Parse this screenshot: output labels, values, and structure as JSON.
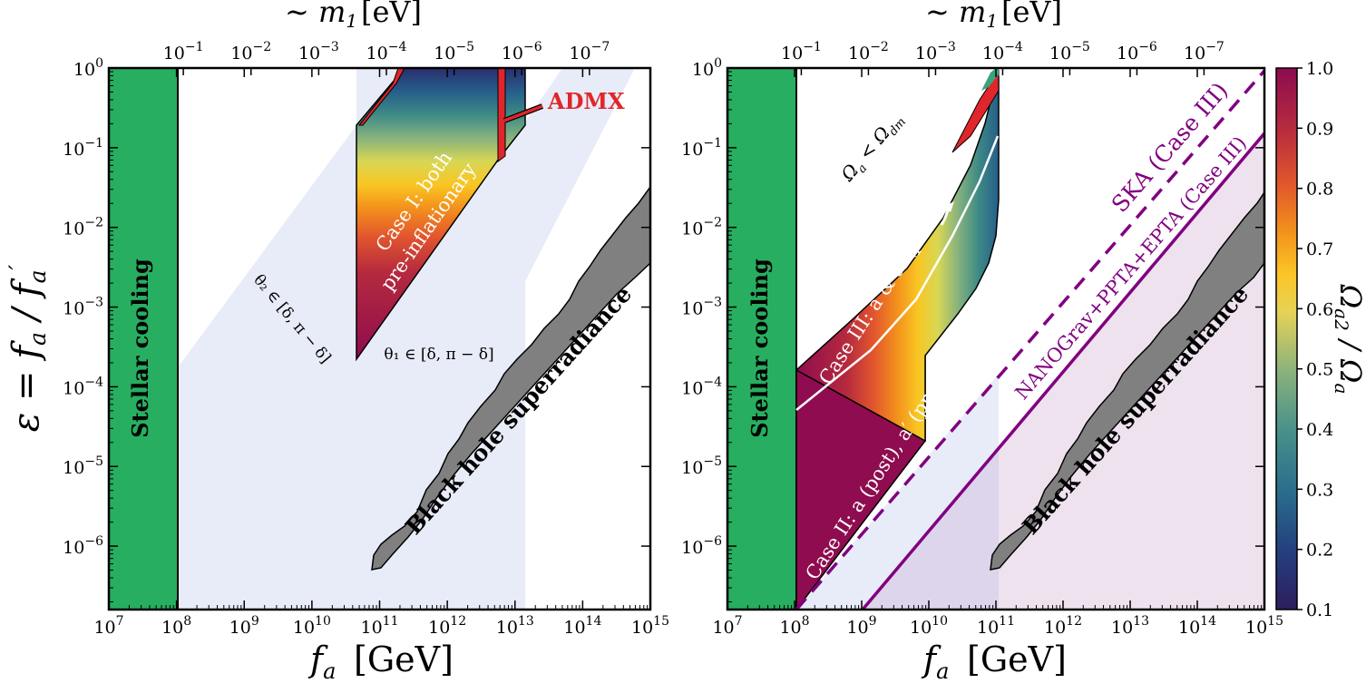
{
  "chart_data": [
    {
      "type": "region",
      "xlabel": "f_a [GeV]",
      "ylabel": "ε = f_a / f_a′",
      "top_xlabel": "~ m_1 [eV]",
      "x_scale": "log",
      "y_scale": "log",
      "xlim": [
        10000000.0,
        1000000000000000.0
      ],
      "ylim": [
        1.6e-07,
        1
      ],
      "x_ticks": [
        {
          "value": 10000000.0,
          "label": "10^7"
        },
        {
          "value": 100000000.0,
          "label": "10^8"
        },
        {
          "value": 1000000000.0,
          "label": "10^9"
        },
        {
          "value": 10000000000.0,
          "label": "10^10"
        },
        {
          "value": 100000000000.0,
          "label": "10^11"
        },
        {
          "value": 1000000000000.0,
          "label": "10^12"
        },
        {
          "value": 10000000000000.0,
          "label": "10^13"
        },
        {
          "value": 100000000000000.0,
          "label": "10^14"
        },
        {
          "value": 1000000000000000.0,
          "label": "10^15"
        }
      ],
      "y_ticks": [
        {
          "value": 1,
          "label": "10^0"
        },
        {
          "value": 0.1,
          "label": "10^-1"
        },
        {
          "value": 0.01,
          "label": "10^-2"
        },
        {
          "value": 0.001,
          "label": "10^-3"
        },
        {
          "value": 0.0001,
          "label": "10^-4"
        },
        {
          "value": 1e-05,
          "label": "10^-5"
        },
        {
          "value": 1e-06,
          "label": "10^-6"
        }
      ],
      "top_ticks": [
        {
          "fa": 126000000.0,
          "label": "10^-1"
        },
        {
          "fa": 1260000000.0,
          "label": "10^-2"
        },
        {
          "fa": 12600000000.0,
          "label": "10^-3"
        },
        {
          "fa": 126000000000.0,
          "label": "10^-4"
        },
        {
          "fa": 1260000000000.0,
          "label": "10^-5"
        },
        {
          "fa": 12600000000000.0,
          "label": "10^-6"
        },
        {
          "fa": 126000000000000.0,
          "label": "10^-7"
        }
      ],
      "regions": [
        {
          "name": "Stellar cooling",
          "color": "#27ae60",
          "fa_max": 100000000.0
        },
        {
          "name": "Black hole superradiance",
          "color": "#808080"
        },
        {
          "name": "θ_2 ∈ [δ, π − δ]",
          "color": "#e8ecf8"
        },
        {
          "name": "θ_1 ∈ [δ, π − δ]",
          "color": "#e8ecf8",
          "fa_range": [
            50000000000.0,
            13000000000000.0
          ]
        },
        {
          "name": "Case I: both pre-inflationary"
        },
        {
          "name": "ADMX",
          "color": "#e0262b"
        }
      ],
      "annotations": {
        "stellar": "Stellar cooling",
        "bh": "Black hole superradiance",
        "theta2": "θ₂ ∈ [δ, π − δ]",
        "theta1": "θ₁ ∈ [δ, π − δ]",
        "case1a": "Case I: both",
        "case1b": "pre-inflationary",
        "admx": "ADMX"
      }
    },
    {
      "type": "region",
      "xlabel": "f_a [GeV]",
      "top_xlabel": "~ m_1 [eV]",
      "x_scale": "log",
      "y_scale": "log",
      "xlim": [
        10000000.0,
        1000000000000000.0
      ],
      "ylim": [
        1.6e-07,
        1
      ],
      "colorbar": {
        "label": "Ω_a2 / Ω_a",
        "range": [
          0.1,
          1.0
        ],
        "ticks": [
          "0.1",
          "0.2",
          "0.3",
          "0.4",
          "0.5",
          "0.6",
          "0.7",
          "0.8",
          "0.9",
          "1.0"
        ]
      },
      "regions": [
        {
          "name": "Stellar cooling",
          "color": "#27ae60",
          "fa_max": 100000000.0
        },
        {
          "name": "Black hole superradiance",
          "color": "#808080"
        },
        {
          "name": "Case II: a (post), a′ (pre)"
        },
        {
          "name": "Case III: a & a′ (post)"
        },
        {
          "name": "Ω_a < Ω_dm"
        },
        {
          "name": "SKA (Case III)",
          "color": "#800080",
          "style": "dashed"
        },
        {
          "name": "NANOGrav+PPTA+EPTA (Case III)",
          "color": "#800080",
          "style": "solid"
        }
      ],
      "annotations": {
        "stellar": "Stellar cooling",
        "bh": "Black hole superradiance",
        "case2": "Case II: a (post), a′ (pre)",
        "case3": "Case III: a & a′ (post)",
        "omega": "Ω_a < Ω_dm",
        "ska": "SKA (Case III)",
        "nano": "NANOGrav+PPTA+EPTA (Case III)"
      }
    }
  ],
  "text": {
    "xlabel_left": "[GeV]",
    "xlabel_right": "[GeV]",
    "top_left": "[eV]",
    "top_right": "[eV]",
    "ylabel": "ε = f",
    "cbar_label": "Ω",
    "left_stellar": "Stellar cooling",
    "left_bh": "Black hole superradiance",
    "left_theta2": "θ₂ ∈ [δ, π − δ]",
    "left_theta1": "θ₁ ∈ [δ, π − δ]",
    "left_case1a": "Case I: both",
    "left_case1b": "pre-inflationary",
    "left_admx": "ADMX",
    "right_stellar": "Stellar cooling",
    "right_bh": "Black hole superradiance",
    "right_case2": "Case II: a (post), a′ (pre)",
    "right_case3": "Case III: a & a′ (post)",
    "right_omega": "Ω",
    "right_ska": "SKA (Case III)",
    "right_nano": "NANOGrav+PPTA+EPTA (Case III)"
  }
}
